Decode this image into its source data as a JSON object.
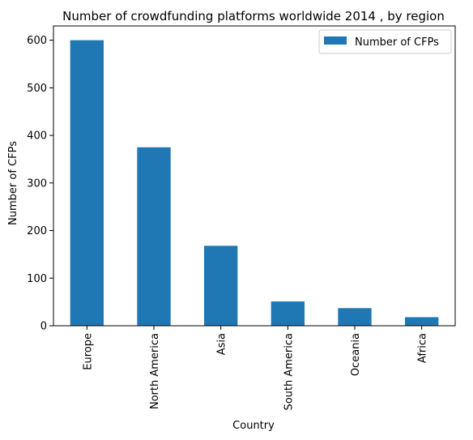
{
  "chart_data": {
    "type": "bar",
    "title": "Number of crowdfunding platforms worldwide 2014 , by region",
    "xlabel": "Country",
    "ylabel": "Number of CFPs",
    "categories": [
      "Europe",
      "North America",
      "Asia",
      "South America",
      "Oceania",
      "Africa"
    ],
    "series": [
      {
        "name": "Number of CFPs",
        "values": [
          600,
          375,
          168,
          51,
          37,
          18
        ],
        "color": "#1f77b4"
      }
    ],
    "ylim": [
      0,
      630
    ],
    "yticks": [
      0,
      100,
      200,
      300,
      400,
      500,
      600
    ],
    "grid": false,
    "legend_position": "top-right"
  }
}
